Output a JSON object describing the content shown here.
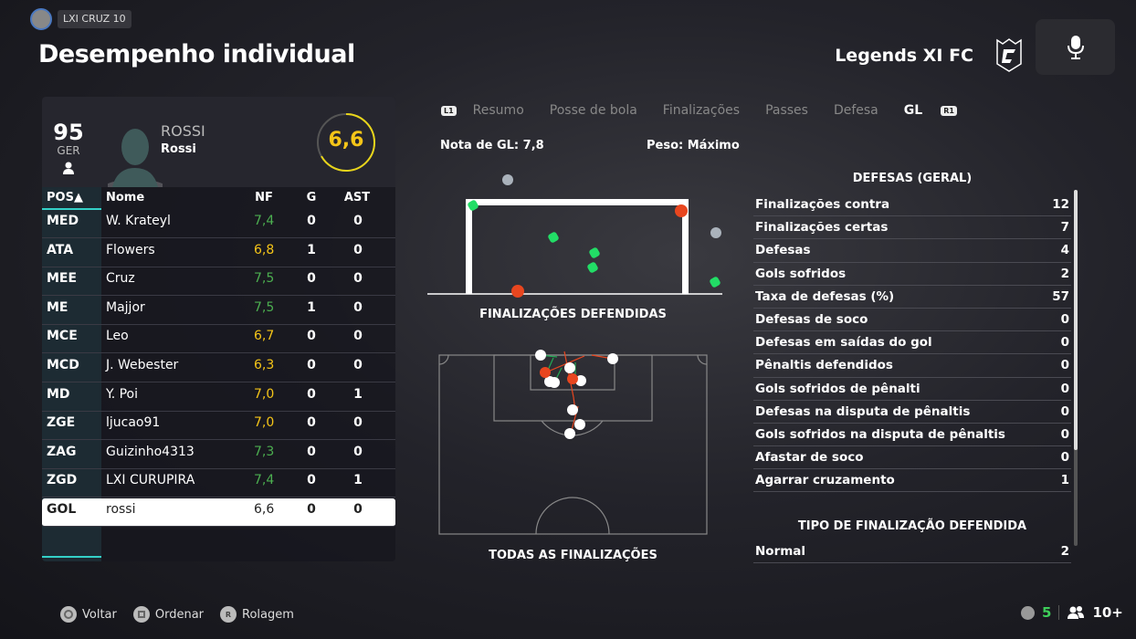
{
  "header": {
    "title": "Desempenho individual",
    "gamertag": "LXI CRUZ 10",
    "club": "Legends XI FC"
  },
  "player": {
    "overall": "95",
    "position": "GER",
    "name": "ROSSI",
    "subname": "Rossi",
    "rating": "6,6",
    "rating_color": "#f5c518"
  },
  "table": {
    "headers": [
      "POS▲",
      "Nome",
      "NF",
      "G",
      "AST"
    ],
    "rows": [
      {
        "pos": "MED",
        "name": "W. Krateyl",
        "nf": "7,4",
        "g": "0",
        "ast": "0",
        "color": "#4caf50"
      },
      {
        "pos": "ATA",
        "name": "Flowers",
        "nf": "6,8",
        "g": "1",
        "ast": "0",
        "color": "#f5c518"
      },
      {
        "pos": "MEE",
        "name": "Cruz",
        "nf": "7,5",
        "g": "0",
        "ast": "0",
        "color": "#4caf50"
      },
      {
        "pos": "ME",
        "name": "Majjor",
        "nf": "7,5",
        "g": "1",
        "ast": "0",
        "color": "#4caf50"
      },
      {
        "pos": "MCE",
        "name": "Leo",
        "nf": "6,7",
        "g": "0",
        "ast": "0",
        "color": "#f5c518"
      },
      {
        "pos": "MCD",
        "name": "J. Webester",
        "nf": "6,3",
        "g": "0",
        "ast": "0",
        "color": "#f5c518"
      },
      {
        "pos": "MD",
        "name": "Y. Poi",
        "nf": "7,0",
        "g": "0",
        "ast": "1",
        "color": "#f5c518"
      },
      {
        "pos": "ZGE",
        "name": "ljucao91",
        "nf": "7,0",
        "g": "0",
        "ast": "0",
        "color": "#f5c518"
      },
      {
        "pos": "ZAG",
        "name": "Guizinho4313",
        "nf": "7,3",
        "g": "0",
        "ast": "0",
        "color": "#4caf50"
      },
      {
        "pos": "ZGD",
        "name": "LXI CURUPIRA",
        "nf": "7,4",
        "g": "0",
        "ast": "1",
        "color": "#4caf50"
      },
      {
        "pos": "GOL",
        "name": "rossi",
        "nf": "6,6",
        "g": "0",
        "ast": "0",
        "color": "#222222"
      }
    ]
  },
  "tabs": {
    "left_button": "L1",
    "right_button": "R1",
    "items": [
      "Resumo",
      "Posse de bola",
      "Finalizações",
      "Passes",
      "Defesa",
      "GL"
    ],
    "active": "GL"
  },
  "gk": {
    "rating": "Nota de GL: 7,8",
    "weight": "Peso: Máximo",
    "goal_caption": "FINALIZAÇÕES DEFENDIDAS",
    "pitch_caption": "TODAS AS FINALIZAÇÕES"
  },
  "stats": {
    "header": "DEFESAS (GERAL)",
    "rows": [
      {
        "label": "Finalizações contra",
        "value": "12"
      },
      {
        "label": "Finalizações certas",
        "value": "7"
      },
      {
        "label": "Defesas",
        "value": "4"
      },
      {
        "label": "Gols sofridos",
        "value": "2"
      },
      {
        "label": "Taxa de defesas (%)",
        "value": "57"
      },
      {
        "label": "Defesas de soco",
        "value": "0"
      },
      {
        "label": "Defesas em saídas do gol",
        "value": "0"
      },
      {
        "label": "Pênaltis defendidos",
        "value": "0"
      },
      {
        "label": "Gols sofridos de pênalti",
        "value": "0"
      },
      {
        "label": "Defesas na disputa de pênaltis",
        "value": "0"
      },
      {
        "label": "Gols sofridos na disputa de pênaltis",
        "value": "0"
      },
      {
        "label": "Afastar de soco",
        "value": "0"
      },
      {
        "label": "Agarrar cruzamento",
        "value": "1"
      }
    ],
    "header2": "TIPO DE FINALIZAÇÃO DEFENDIDA",
    "rows2": [
      {
        "label": "Normal",
        "value": "2"
      }
    ]
  },
  "footer": {
    "back": "Voltar",
    "sort": "Ordenar",
    "scroll": "Rolagem",
    "scroll_key": "R",
    "count": "5",
    "party": "10+"
  },
  "colors": {
    "accent": "#34d1c8",
    "save": "#22dd66",
    "goal": "#e8461f"
  }
}
